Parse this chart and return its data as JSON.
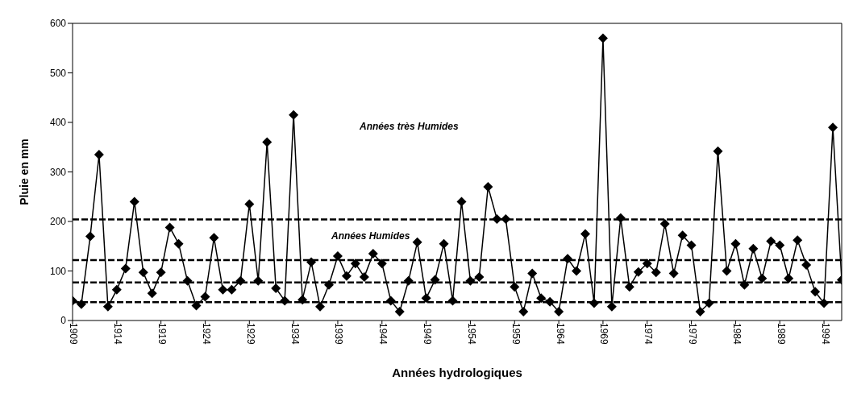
{
  "chart_data": {
    "type": "line",
    "xlabel": "Années hydrologiques",
    "ylabel": "Pluie en mm",
    "annotations": [
      "Années très Humides",
      "Années Humides"
    ],
    "x": [
      1909,
      1910,
      1911,
      1912,
      1913,
      1914,
      1915,
      1916,
      1917,
      1918,
      1919,
      1920,
      1921,
      1922,
      1923,
      1924,
      1925,
      1926,
      1927,
      1928,
      1929,
      1930,
      1931,
      1932,
      1933,
      1934,
      1935,
      1936,
      1937,
      1938,
      1939,
      1940,
      1941,
      1942,
      1943,
      1944,
      1945,
      1946,
      1947,
      1948,
      1949,
      1950,
      1951,
      1952,
      1953,
      1954,
      1955,
      1956,
      1957,
      1958,
      1959,
      1960,
      1961,
      1962,
      1963,
      1964,
      1965,
      1966,
      1967,
      1968,
      1969,
      1970,
      1971,
      1972,
      1973,
      1974,
      1975,
      1976,
      1977,
      1978,
      1979,
      1980,
      1981,
      1982,
      1983,
      1984,
      1985,
      1986,
      1987,
      1988,
      1989,
      1990,
      1991,
      1992,
      1993,
      1994,
      1995,
      1996
    ],
    "series": [
      {
        "color": "#000000",
        "values": [
          40,
          33,
          170,
          335,
          28,
          62,
          105,
          240,
          97,
          55,
          97,
          188,
          155,
          80,
          30,
          48,
          167,
          62,
          62,
          80,
          235,
          80,
          360,
          65,
          40,
          415,
          42,
          118,
          28,
          72,
          130,
          90,
          115,
          88,
          135,
          115,
          40,
          18,
          80,
          158,
          45,
          82,
          155,
          40,
          240,
          80,
          88,
          270,
          205,
          205,
          68,
          18,
          95,
          45,
          38,
          18,
          125,
          100,
          175,
          35,
          570,
          28,
          207,
          68,
          98,
          115,
          97,
          195,
          95,
          172,
          152,
          18,
          35,
          342,
          100,
          155,
          72,
          145,
          85,
          160,
          152,
          85,
          162,
          112,
          58,
          35,
          390,
          82
        ]
      }
    ],
    "xlim": [
      1909,
      1996
    ],
    "xticks": [
      1909,
      1914,
      1919,
      1924,
      1929,
      1934,
      1939,
      1944,
      1949,
      1954,
      1959,
      1964,
      1969,
      1974,
      1979,
      1984,
      1989,
      1994
    ],
    "ylim": [
      0,
      600
    ],
    "yticks": [
      0,
      100,
      200,
      300,
      400,
      500,
      600
    ],
    "ref_lines": [
      {
        "axis": "y",
        "value": 204,
        "color": "#000000",
        "line_style": "dashed"
      },
      {
        "axis": "y",
        "value": 122,
        "color": "#000000",
        "line_style": "dashed"
      },
      {
        "axis": "y",
        "value": 77,
        "color": "#000000",
        "line_style": "dashed"
      },
      {
        "axis": "y",
        "value": 37,
        "color": "#000000",
        "line_style": "dashed"
      }
    ],
    "grid": false,
    "legend": false,
    "marker": "diamond",
    "line_style": "solid"
  }
}
